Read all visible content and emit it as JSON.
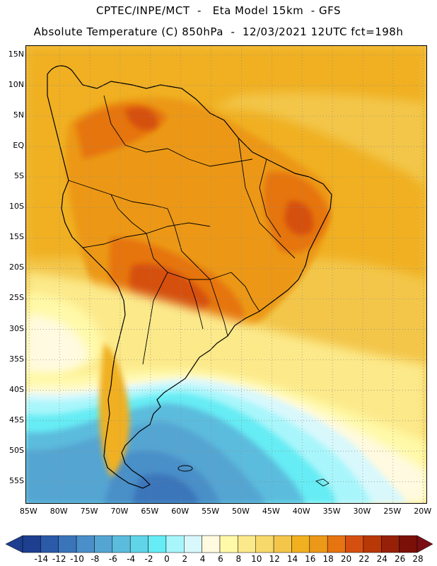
{
  "header": {
    "title_line1": "CPTEC/INPE/MCT  -   Eta Model 15km  - GFS",
    "title_line2": "Absolute Temperature (C) 850hPa  -  12/03/2021 12UTC fct=198h"
  },
  "axes": {
    "lat_labels": [
      "15N",
      "10N",
      "5N",
      "EQ",
      "5S",
      "10S",
      "15S",
      "20S",
      "25S",
      "30S",
      "35S",
      "40S",
      "45S",
      "50S",
      "55S"
    ],
    "lon_labels": [
      "85W",
      "80W",
      "75W",
      "70W",
      "65W",
      "60W",
      "55W",
      "50W",
      "45W",
      "40W",
      "35W",
      "30W",
      "25W",
      "20W"
    ]
  },
  "colorbar": {
    "labels": [
      "-14",
      "-12",
      "-10",
      "-8",
      "-6",
      "-4",
      "-2",
      "0",
      "2",
      "4",
      "6",
      "8",
      "10",
      "12",
      "14",
      "16",
      "18",
      "20",
      "22",
      "24",
      "26",
      "28"
    ],
    "colors": [
      "#1e3f8f",
      "#2a5aa8",
      "#3a75ba",
      "#4a8fc8",
      "#54a5d2",
      "#5cbcdd",
      "#60d4e8",
      "#66ecf4",
      "#a8f6fb",
      "#d8f8fc",
      "#fffae0",
      "#fff9a8",
      "#fce98a",
      "#f7d86a",
      "#f3c64a",
      "#f0b020",
      "#ec9818",
      "#e67410",
      "#d55010",
      "#b83808",
      "#962008",
      "#7a1008"
    ],
    "extend_low": "#1e3f8f",
    "extend_high": "#7a0e14"
  },
  "map": {
    "projection": "cylindrical",
    "lon_range": [
      -85.5,
      -19.5
    ],
    "lat_range": [
      -58.5,
      16.5
    ],
    "grid": "dotted"
  }
}
